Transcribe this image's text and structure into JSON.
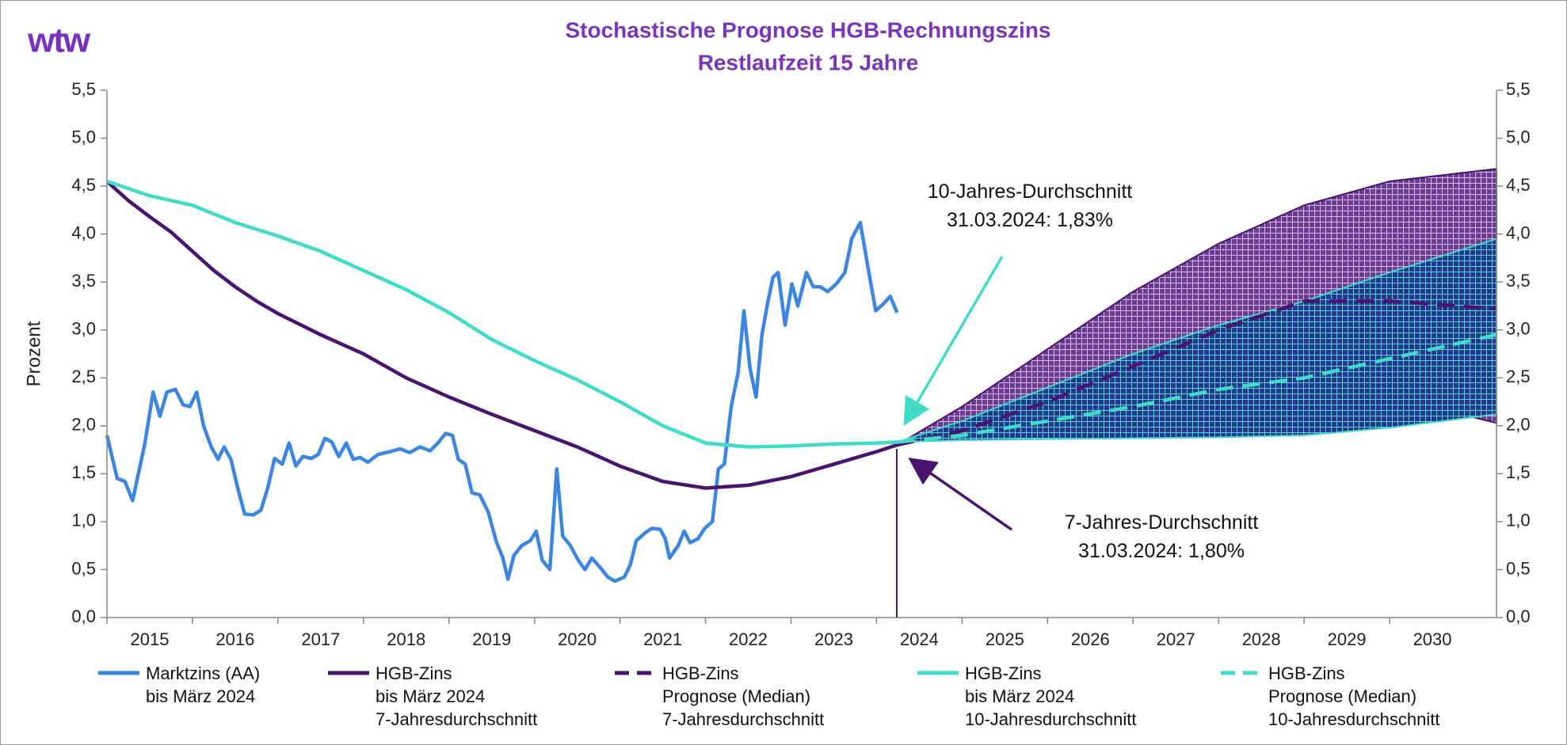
{
  "chart_data": {
    "type": "line",
    "logo": "wtw",
    "title": "Stochastische Prognose HGB-Rechnungszins",
    "subtitle": "Restlaufzeit 15 Jahre",
    "y_label": "Prozent",
    "xlim": [
      2015,
      2031.25
    ],
    "xticks": [
      2015,
      2016,
      2017,
      2018,
      2019,
      2020,
      2021,
      2022,
      2023,
      2024,
      2025,
      2026,
      2027,
      2028,
      2029,
      2030
    ],
    "ylim": [
      0,
      5.5
    ],
    "yticks": [
      {
        "value": 0,
        "label": "0,0"
      },
      {
        "value": 0.5,
        "label": "0,5"
      },
      {
        "value": 1,
        "label": "1,0"
      },
      {
        "value": 1.5,
        "label": "1,5"
      },
      {
        "value": 2,
        "label": "2,0"
      },
      {
        "value": 2.5,
        "label": "2,5"
      },
      {
        "value": 3,
        "label": "3,0"
      },
      {
        "value": 3.5,
        "label": "3,5"
      },
      {
        "value": 4,
        "label": "4,0"
      },
      {
        "value": 4.5,
        "label": "4,5"
      },
      {
        "value": 5,
        "label": "5,0"
      },
      {
        "value": 5.5,
        "label": "5,5"
      }
    ],
    "y2lim": [
      0,
      5.5
    ],
    "y2ticks": [
      {
        "value": 0,
        "label": "0,0"
      },
      {
        "value": 0.5,
        "label": "0,5"
      },
      {
        "value": 1,
        "label": "1,0"
      },
      {
        "value": 1.5,
        "label": "1,5"
      },
      {
        "value": 2,
        "label": "2,0"
      },
      {
        "value": 2.5,
        "label": "2,5"
      },
      {
        "value": 3,
        "label": "3,0"
      },
      {
        "value": 3.5,
        "label": "3,5"
      },
      {
        "value": 4,
        "label": "4,0"
      },
      {
        "value": 4.5,
        "label": "4,5"
      },
      {
        "value": 5,
        "label": "5,0"
      },
      {
        "value": 5.5,
        "label": "5,5"
      }
    ],
    "grid": false,
    "bands": [
      {
        "color": "#6b3a93",
        "hatch": "#d7bce8",
        "edge": "#4a1370",
        "x": [
          2024.24,
          2025,
          2026,
          2027,
          2028,
          2029,
          2030,
          2031.25
        ],
        "upper": [
          1.8,
          2.2,
          2.8,
          3.4,
          3.9,
          4.3,
          4.55,
          4.68
        ],
        "lower": [
          1.8,
          1.95,
          2.12,
          2.28,
          2.42,
          2.48,
          2.3,
          2.03
        ]
      },
      {
        "color": "#243592",
        "hatch": "#55d8cf",
        "edge": "#41dcc8",
        "x": [
          2024.24,
          2025,
          2026,
          2027,
          2028,
          2029,
          2030,
          2031.25
        ],
        "upper": [
          1.83,
          2.05,
          2.4,
          2.75,
          3.05,
          3.3,
          3.6,
          3.95
        ],
        "lower": [
          1.83,
          1.85,
          1.86,
          1.87,
          1.88,
          1.9,
          1.98,
          2.12
        ]
      }
    ],
    "series": [
      {
        "name": "Marktzins (AA)\nbis März 2024",
        "color": "#3b87e0",
        "dash": false,
        "x": [
          2015.0,
          2015.12,
          2015.21,
          2015.3,
          2015.44,
          2015.54,
          2015.62,
          2015.7,
          2015.8,
          2015.89,
          2015.97,
          2016.05,
          2016.13,
          2016.22,
          2016.3,
          2016.37,
          2016.45,
          2016.53,
          2016.61,
          2016.71,
          2016.8,
          2016.88,
          2016.96,
          2017.05,
          2017.13,
          2017.21,
          2017.29,
          2017.39,
          2017.47,
          2017.55,
          2017.63,
          2017.71,
          2017.8,
          2017.88,
          2017.96,
          2018.05,
          2018.17,
          2018.31,
          2018.43,
          2018.54,
          2018.66,
          2018.78,
          2018.87,
          2018.96,
          2019.04,
          2019.11,
          2019.19,
          2019.27,
          2019.36,
          2019.46,
          2019.55,
          2019.63,
          2019.69,
          2019.76,
          2019.85,
          2019.95,
          2020.02,
          2020.09,
          2020.18,
          2020.26,
          2020.33,
          2020.42,
          2020.51,
          2020.59,
          2020.67,
          2020.77,
          2020.86,
          2020.94,
          2021.05,
          2021.12,
          2021.19,
          2021.29,
          2021.37,
          2021.47,
          2021.53,
          2021.58,
          2021.68,
          2021.75,
          2021.82,
          2021.91,
          2021.99,
          2022.08,
          2022.15,
          2022.22,
          2022.3,
          2022.38,
          2022.45,
          2022.52,
          2022.59,
          2022.66,
          2022.73,
          2022.79,
          2022.85,
          2022.93,
          2023.01,
          2023.08,
          2023.18,
          2023.26,
          2023.34,
          2023.43,
          2023.53,
          2023.63,
          2023.71,
          2023.81,
          2023.9,
          2023.99,
          2024.09,
          2024.16,
          2024.24
        ],
        "values": [
          1.9,
          1.45,
          1.42,
          1.22,
          1.8,
          2.35,
          2.1,
          2.35,
          2.38,
          2.22,
          2.2,
          2.35,
          2.0,
          1.78,
          1.65,
          1.78,
          1.65,
          1.35,
          1.08,
          1.07,
          1.12,
          1.35,
          1.66,
          1.6,
          1.82,
          1.58,
          1.68,
          1.66,
          1.7,
          1.87,
          1.83,
          1.68,
          1.82,
          1.65,
          1.67,
          1.62,
          1.7,
          1.73,
          1.76,
          1.72,
          1.78,
          1.74,
          1.82,
          1.92,
          1.9,
          1.65,
          1.6,
          1.3,
          1.28,
          1.1,
          0.8,
          0.62,
          0.4,
          0.65,
          0.75,
          0.8,
          0.9,
          0.6,
          0.5,
          1.55,
          0.85,
          0.75,
          0.6,
          0.5,
          0.62,
          0.52,
          0.42,
          0.38,
          0.42,
          0.55,
          0.8,
          0.88,
          0.93,
          0.92,
          0.82,
          0.62,
          0.75,
          0.9,
          0.78,
          0.82,
          0.93,
          1.0,
          1.55,
          1.6,
          2.2,
          2.55,
          3.2,
          2.6,
          2.3,
          2.95,
          3.3,
          3.55,
          3.6,
          3.05,
          3.48,
          3.25,
          3.6,
          3.45,
          3.45,
          3.4,
          3.48,
          3.6,
          3.95,
          4.12,
          3.65,
          3.2,
          3.28,
          3.35,
          3.18
        ]
      },
      {
        "name": "HGB-Zins\nbis März 2024\n7-Jahresdurchschnitt",
        "color": "#4a1370",
        "dash": false,
        "x": [
          2015.0,
          2015.25,
          2015.5,
          2015.75,
          2016.0,
          2016.25,
          2016.5,
          2016.75,
          2017.0,
          2017.5,
          2018.0,
          2018.5,
          2019.0,
          2019.5,
          2020.0,
          2020.5,
          2021.0,
          2021.5,
          2022.0,
          2022.5,
          2023.0,
          2023.5,
          2024.0,
          2024.24
        ],
        "values": [
          4.55,
          4.35,
          4.18,
          4.02,
          3.82,
          3.62,
          3.45,
          3.3,
          3.17,
          2.95,
          2.75,
          2.5,
          2.3,
          2.12,
          1.95,
          1.78,
          1.58,
          1.42,
          1.35,
          1.38,
          1.47,
          1.6,
          1.73,
          1.8
        ]
      },
      {
        "name": "HGB-Zins\nPrognose (Median)\n7-Jahresdurchschnitt",
        "color": "#4a1370",
        "dash": true,
        "x": [
          2024.24,
          2025,
          2026,
          2027,
          2028,
          2029,
          2030,
          2031.25
        ],
        "values": [
          1.8,
          1.95,
          2.25,
          2.62,
          3.0,
          3.3,
          3.3,
          3.22
        ]
      },
      {
        "name": "HGB-Zins\nbis März 2024\n10-Jahresdurchschnitt",
        "color": "#41dcc8",
        "dash": false,
        "x": [
          2015.0,
          2015.5,
          2016.0,
          2016.5,
          2017.0,
          2017.5,
          2018.0,
          2018.5,
          2019.0,
          2019.5,
          2020.0,
          2020.5,
          2021.0,
          2021.5,
          2022.0,
          2022.5,
          2023.0,
          2023.5,
          2024.0,
          2024.24
        ],
        "values": [
          4.55,
          4.4,
          4.3,
          4.12,
          3.98,
          3.82,
          3.62,
          3.42,
          3.18,
          2.9,
          2.68,
          2.48,
          2.25,
          2.0,
          1.82,
          1.78,
          1.79,
          1.81,
          1.82,
          1.83
        ]
      },
      {
        "name": "HGB-Zins\nPrognose (Median)\n10-Jahresdurchschnitt",
        "color": "#41dcc8",
        "dash": true,
        "x": [
          2024.24,
          2025,
          2026,
          2027,
          2028,
          2029,
          2030,
          2031.25
        ],
        "values": [
          1.83,
          1.9,
          2.05,
          2.2,
          2.38,
          2.5,
          2.7,
          2.95
        ]
      }
    ],
    "annotations": [
      {
        "text": "10-Jahres-Durchschnitt\n31.03.2024: 1,83%",
        "color": "#41dcc8"
      },
      {
        "text": "7-Jahres-Durchschnitt\n31.03.2024: 1,80%",
        "color": "#4a1370"
      }
    ]
  }
}
